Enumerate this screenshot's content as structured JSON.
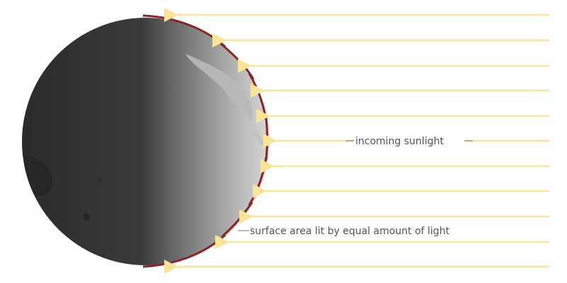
{
  "labels": {
    "incoming": "incoming sunlight",
    "surface": "surface area lit by equal amount of light"
  },
  "colors": {
    "sunlight": "#FAE39A",
    "arc": "#8B2525",
    "label": "#555555",
    "leader": "#777777",
    "earth_dark": "#2f2f2f",
    "earth_lit": "#cfcfcf"
  },
  "icons": {
    "arrowheads": "arrow-left-icon"
  }
}
